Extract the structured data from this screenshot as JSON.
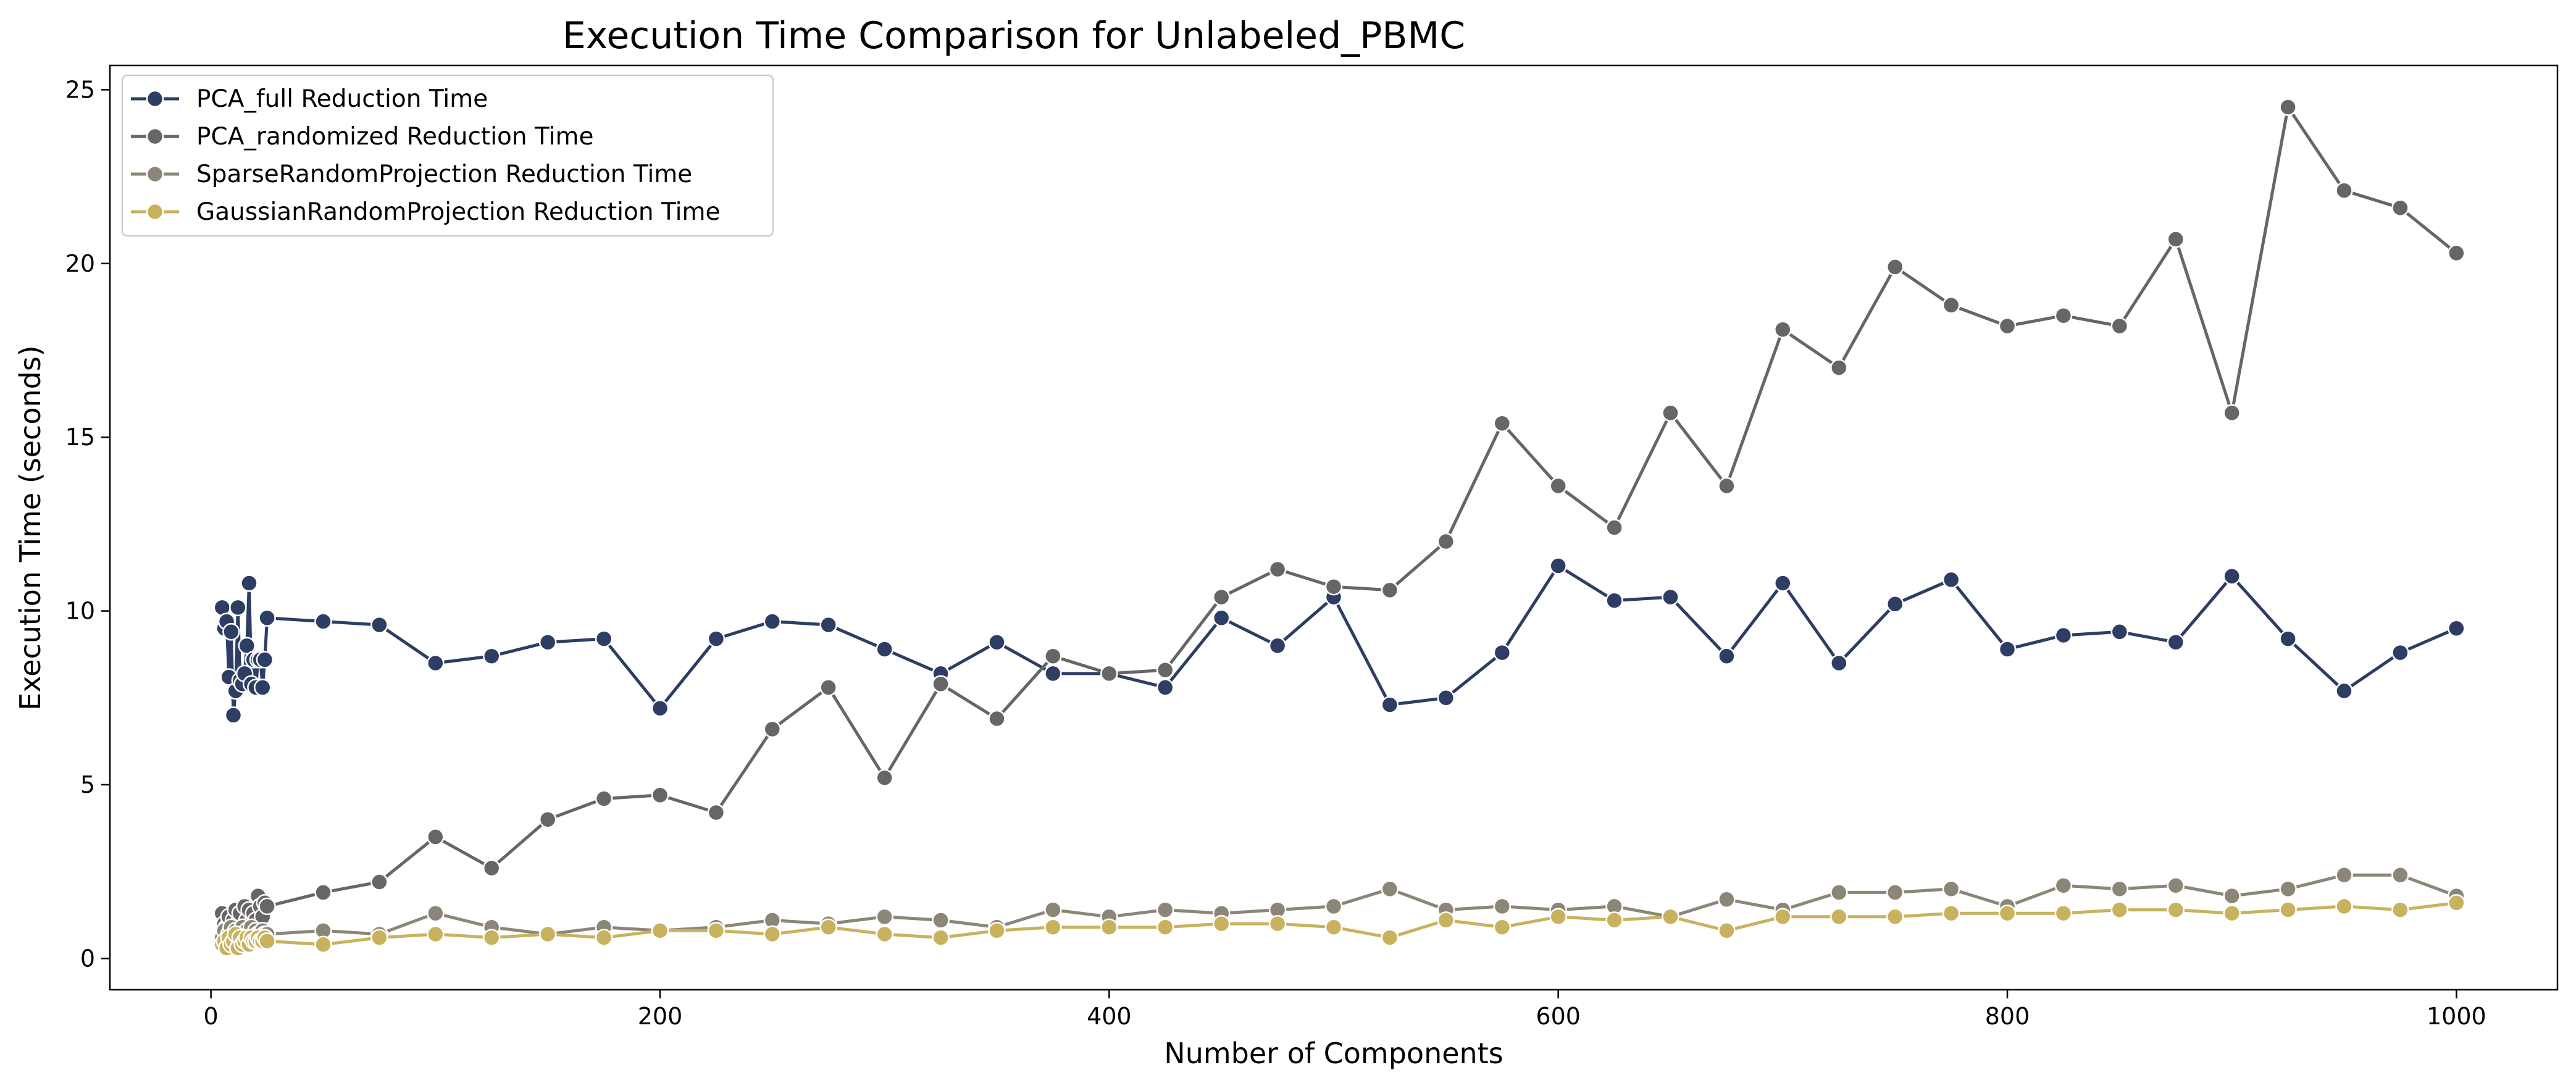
{
  "chart_data": {
    "type": "line",
    "title": "Execution Time Comparison for Unlabeled_PBMC",
    "xlabel": "Number of Components",
    "ylabel": "Execution Time (seconds)",
    "xlim": [
      -45,
      1045
    ],
    "ylim": [
      -0.9,
      25.7
    ],
    "x_ticks": [
      0,
      200,
      400,
      600,
      800,
      1000
    ],
    "y_ticks": [
      0,
      5,
      10,
      15,
      20,
      25
    ],
    "grid": false,
    "legend_position": "top-left",
    "x": [
      5,
      6,
      7,
      8,
      9,
      10,
      11,
      12,
      13,
      14,
      15,
      16,
      17,
      18,
      19,
      20,
      21,
      22,
      23,
      24,
      25,
      50,
      75,
      100,
      125,
      150,
      175,
      200,
      225,
      250,
      275,
      300,
      325,
      350,
      375,
      400,
      425,
      450,
      475,
      500,
      525,
      550,
      575,
      600,
      625,
      650,
      675,
      700,
      725,
      750,
      775,
      800,
      825,
      850,
      875,
      900,
      925,
      950,
      975,
      1000
    ],
    "series": [
      {
        "name": "PCA_full Reduction Time",
        "color": "#2d3d63",
        "values": [
          10.1,
          9.5,
          9.7,
          8.1,
          9.4,
          7.0,
          7.7,
          10.1,
          8.0,
          7.9,
          8.2,
          9.0,
          10.8,
          7.9,
          8.6,
          7.8,
          8.6,
          8.6,
          7.8,
          8.6,
          9.8,
          9.7,
          9.6,
          8.5,
          8.7,
          9.1,
          9.2,
          7.2,
          9.2,
          9.7,
          9.6,
          8.9,
          8.2,
          9.1,
          8.2,
          8.2,
          7.8,
          9.8,
          9.0,
          10.4,
          7.3,
          7.5,
          8.8,
          11.3,
          10.3,
          10.4,
          8.7,
          10.8,
          8.5,
          10.2,
          10.9,
          8.9,
          9.3,
          9.4,
          9.1,
          11.0,
          9.2,
          7.7,
          8.8,
          9.5
        ]
      },
      {
        "name": "PCA_randomized Reduction Time",
        "color": "#666666",
        "values": [
          1.3,
          1.0,
          0.9,
          1.2,
          0.8,
          1.1,
          1.4,
          1.0,
          1.3,
          0.9,
          1.5,
          1.1,
          1.4,
          1.0,
          1.3,
          1.1,
          1.8,
          1.5,
          1.2,
          1.6,
          1.5,
          1.9,
          2.2,
          3.5,
          2.6,
          4.0,
          4.6,
          4.7,
          4.2,
          6.6,
          7.8,
          5.2,
          7.9,
          6.9,
          8.7,
          8.2,
          8.3,
          10.4,
          11.2,
          10.7,
          10.6,
          12.0,
          15.4,
          13.6,
          12.4,
          15.7,
          13.6,
          18.1,
          17.0,
          19.9,
          18.8,
          18.2,
          18.5,
          18.2,
          20.7,
          15.7,
          24.5,
          22.1,
          21.6,
          20.3
        ]
      },
      {
        "name": "SparseRandomProjection Reduction Time",
        "color": "#8b8677",
        "values": [
          0.6,
          0.8,
          0.5,
          0.7,
          0.9,
          0.6,
          0.8,
          0.5,
          0.7,
          0.9,
          0.6,
          0.8,
          0.7,
          0.9,
          0.6,
          0.8,
          0.7,
          0.7,
          0.8,
          0.7,
          0.7,
          0.8,
          0.7,
          1.3,
          0.9,
          0.7,
          0.9,
          0.8,
          0.9,
          1.1,
          1.0,
          1.2,
          1.1,
          0.9,
          1.4,
          1.2,
          1.4,
          1.3,
          1.4,
          1.5,
          2.0,
          1.4,
          1.5,
          1.4,
          1.5,
          1.2,
          1.7,
          1.4,
          1.9,
          1.9,
          2.0,
          1.5,
          2.1,
          2.0,
          2.1,
          1.8,
          2.0,
          2.4,
          2.4,
          1.8
        ]
      },
      {
        "name": "GaussianRandomProjection Reduction Time",
        "color": "#c8b25e",
        "values": [
          0.4,
          0.5,
          0.3,
          0.6,
          0.4,
          0.5,
          0.7,
          0.3,
          0.6,
          0.4,
          0.5,
          0.6,
          0.4,
          0.6,
          0.5,
          0.5,
          0.6,
          0.5,
          0.5,
          0.6,
          0.5,
          0.4,
          0.6,
          0.7,
          0.6,
          0.7,
          0.6,
          0.8,
          0.8,
          0.7,
          0.9,
          0.7,
          0.6,
          0.8,
          0.9,
          0.9,
          0.9,
          1.0,
          1.0,
          0.9,
          0.6,
          1.1,
          0.9,
          1.2,
          1.1,
          1.2,
          0.8,
          1.2,
          1.2,
          1.2,
          1.3,
          1.3,
          1.3,
          1.4,
          1.4,
          1.3,
          1.4,
          1.5,
          1.4,
          1.6
        ]
      }
    ]
  }
}
